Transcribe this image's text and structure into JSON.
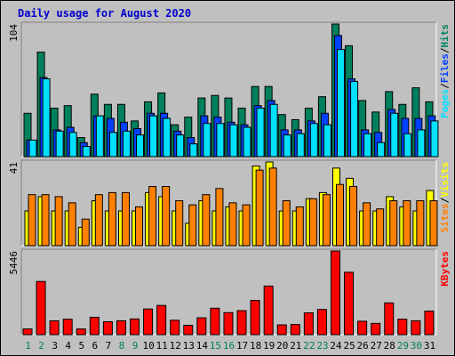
{
  "title": "Daily usage for August 2020",
  "colors": {
    "hits": "#00805c",
    "files": "#0040ff",
    "pages": "#00e0ff",
    "visits": "#ffff00",
    "sites": "#ff8000",
    "kbytes": "#ff0000",
    "weekend": "#00805c",
    "weekday": "#000000"
  },
  "chart_data": [
    {
      "type": "bar",
      "name": "hits_files_pages",
      "ymax_label": "104",
      "ylim": [
        0,
        104
      ],
      "legend": [
        "Pages",
        "/",
        "Files",
        "/",
        "Hits"
      ],
      "x": [
        1,
        2,
        3,
        4,
        5,
        6,
        7,
        8,
        9,
        10,
        11,
        12,
        13,
        14,
        15,
        16,
        17,
        18,
        19,
        20,
        21,
        22,
        23,
        24,
        25,
        26,
        27,
        28,
        29,
        30,
        31
      ],
      "series": [
        {
          "name": "Hits",
          "values": [
            34,
            82,
            38,
            40,
            15,
            49,
            41,
            41,
            28,
            43,
            50,
            25,
            31,
            46,
            48,
            46,
            38,
            55,
            55,
            33,
            29,
            38,
            47,
            104,
            87,
            44,
            35,
            51,
            41,
            54,
            43
          ]
        },
        {
          "name": "Files",
          "values": [
            13,
            62,
            21,
            23,
            11,
            32,
            30,
            27,
            22,
            34,
            34,
            20,
            15,
            32,
            31,
            27,
            25,
            40,
            44,
            21,
            21,
            28,
            34,
            95,
            61,
            21,
            19,
            37,
            30,
            30,
            32
          ]
        },
        {
          "name": "Pages",
          "values": [
            13,
            61,
            20,
            19,
            8,
            32,
            19,
            20,
            17,
            32,
            30,
            17,
            10,
            26,
            26,
            25,
            23,
            38,
            41,
            17,
            18,
            26,
            25,
            84,
            59,
            18,
            11,
            34,
            18,
            21,
            28
          ]
        }
      ]
    },
    {
      "type": "bar",
      "name": "visits_sites",
      "ymax_label": "41",
      "ylim": [
        0,
        41
      ],
      "legend": [
        "Sites",
        "/",
        "Visits"
      ],
      "x": [
        1,
        2,
        3,
        4,
        5,
        6,
        7,
        8,
        9,
        10,
        11,
        12,
        13,
        14,
        15,
        16,
        17,
        18,
        19,
        20,
        21,
        22,
        23,
        24,
        25,
        26,
        27,
        28,
        29,
        30,
        31
      ],
      "series": [
        {
          "name": "Visits",
          "values": [
            17,
            24,
            17,
            17,
            9,
            22,
            17,
            17,
            17,
            26,
            24,
            17,
            11,
            22,
            17,
            19,
            17,
            39,
            41,
            17,
            17,
            23,
            26,
            38,
            33,
            17,
            17,
            24,
            19,
            17,
            27
          ]
        },
        {
          "name": "Sites",
          "values": [
            25,
            25,
            24,
            21,
            13,
            25,
            26,
            26,
            19,
            29,
            29,
            22,
            20,
            25,
            28,
            21,
            20,
            37,
            38,
            22,
            19,
            23,
            25,
            30,
            29,
            21,
            18,
            22,
            22,
            22,
            22
          ]
        }
      ]
    },
    {
      "type": "bar",
      "name": "kbytes",
      "ymax_label": "5446",
      "ylim": [
        0,
        5446
      ],
      "legend": [
        "KBytes"
      ],
      "x": [
        1,
        2,
        3,
        4,
        5,
        6,
        7,
        8,
        9,
        10,
        11,
        12,
        13,
        14,
        15,
        16,
        17,
        18,
        19,
        20,
        21,
        22,
        23,
        24,
        25,
        26,
        27,
        28,
        29,
        30,
        31
      ],
      "series": [
        {
          "name": "KBytes",
          "values": [
            370,
            3461,
            900,
            1003,
            370,
            1133,
            841,
            900,
            1023,
            1671,
            1900,
            937,
            610,
            1097,
            1720,
            1433,
            1564,
            2230,
            3162,
            637,
            663,
            1420,
            1640,
            5446,
            4060,
            873,
            733,
            2067,
            1007,
            900,
            1534
          ]
        }
      ]
    }
  ],
  "x_labels": [
    "1",
    "2",
    "3",
    "4",
    "5",
    "6",
    "7",
    "8",
    "9",
    "10",
    "11",
    "12",
    "13",
    "14",
    "15",
    "16",
    "17",
    "18",
    "19",
    "20",
    "21",
    "22",
    "23",
    "24",
    "25",
    "26",
    "27",
    "28",
    "29",
    "30",
    "31"
  ],
  "weekend_days": [
    1,
    2,
    8,
    9,
    15,
    16,
    22,
    23,
    29,
    30
  ]
}
